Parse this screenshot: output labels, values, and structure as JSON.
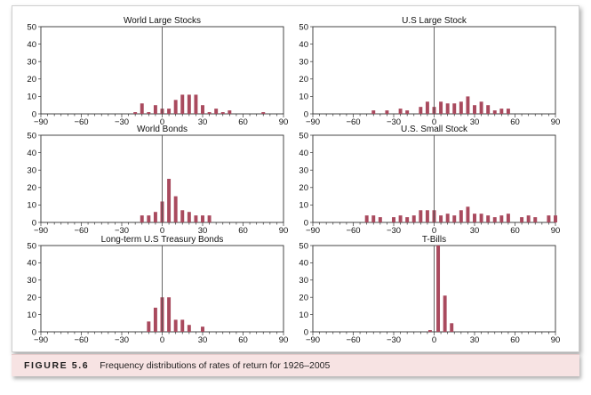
{
  "figure": {
    "label": "FIGURE 5.6",
    "text": "Frequency distributions of rates of return for 1926–2005"
  },
  "colors": {
    "bar": "#a94a5e",
    "axis": "#333333",
    "zero_line": "#555555"
  },
  "chart_data": [
    {
      "type": "bar",
      "title": "World Large Stocks",
      "xlim": [
        -90,
        90
      ],
      "ylim": [
        0,
        50
      ],
      "xticks": [
        -90,
        -60,
        -30,
        0,
        30,
        60,
        90
      ],
      "yticks": [
        0,
        10,
        20,
        30,
        40,
        50
      ],
      "x": [
        -25,
        -20,
        -15,
        -10,
        -5,
        0,
        5,
        10,
        15,
        20,
        25,
        30,
        35,
        40,
        45,
        50,
        55,
        60,
        65,
        70,
        75
      ],
      "values": [
        0,
        1,
        6,
        1,
        5,
        3,
        3,
        8,
        11,
        11,
        11,
        5,
        1,
        3,
        1,
        2,
        0,
        0,
        0,
        0,
        1
      ]
    },
    {
      "type": "bar",
      "title": "U.S Large Stock",
      "xlim": [
        -90,
        90
      ],
      "ylim": [
        0,
        50
      ],
      "xticks": [
        -90,
        -60,
        -30,
        0,
        30,
        60,
        90
      ],
      "yticks": [
        0,
        10,
        20,
        30,
        40,
        50
      ],
      "x": [
        -45,
        -40,
        -35,
        -30,
        -25,
        -20,
        -15,
        -10,
        -5,
        0,
        5,
        10,
        15,
        20,
        25,
        30,
        35,
        40,
        45,
        50,
        55
      ],
      "values": [
        2,
        0,
        2,
        0,
        3,
        2,
        0,
        4,
        7,
        4,
        7,
        6,
        6,
        7,
        10,
        5,
        7,
        5,
        2,
        3,
        3
      ]
    },
    {
      "type": "bar",
      "title": "World Bonds",
      "xlim": [
        -90,
        90
      ],
      "ylim": [
        0,
        50
      ],
      "xticks": [
        -90,
        -60,
        -30,
        0,
        30,
        60,
        90
      ],
      "yticks": [
        0,
        10,
        20,
        30,
        40,
        50
      ],
      "x": [
        -15,
        -10,
        -5,
        0,
        5,
        10,
        15,
        20,
        25,
        30,
        35
      ],
      "values": [
        4,
        4,
        6,
        12,
        25,
        15,
        7,
        6,
        4,
        4,
        4
      ]
    },
    {
      "type": "bar",
      "title": "U.S. Small Stock",
      "xlim": [
        -90,
        90
      ],
      "ylim": [
        0,
        50
      ],
      "xticks": [
        -90,
        -60,
        -30,
        0,
        30,
        60,
        90
      ],
      "yticks": [
        0,
        10,
        20,
        30,
        40,
        50
      ],
      "x": [
        -50,
        -45,
        -40,
        -35,
        -30,
        -25,
        -20,
        -15,
        -10,
        -5,
        0,
        5,
        10,
        15,
        20,
        25,
        30,
        35,
        40,
        45,
        50,
        55,
        60,
        65,
        70,
        75,
        80,
        85,
        90
      ],
      "values": [
        4,
        4,
        3,
        0,
        3,
        4,
        3,
        4,
        7,
        7,
        7,
        4,
        5,
        4,
        7,
        9,
        5,
        5,
        4,
        3,
        4,
        5,
        0,
        3,
        4,
        3,
        0,
        4,
        4
      ]
    },
    {
      "type": "bar",
      "title": "Long-term U.S Treasury Bonds",
      "xlim": [
        -90,
        90
      ],
      "ylim": [
        0,
        50
      ],
      "xticks": [
        -90,
        -60,
        -30,
        0,
        30,
        60,
        90
      ],
      "yticks": [
        0,
        10,
        20,
        30,
        40,
        50
      ],
      "x": [
        -10,
        -5,
        0,
        5,
        10,
        15,
        20,
        25,
        30
      ],
      "values": [
        6,
        14,
        20,
        20,
        7,
        7,
        4,
        0,
        3
      ]
    },
    {
      "type": "bar",
      "title": "T-Bills",
      "xlim": [
        -90,
        90
      ],
      "ylim": [
        0,
        50
      ],
      "xticks": [
        -90,
        -60,
        -30,
        0,
        30,
        60,
        90
      ],
      "yticks": [
        0,
        10,
        20,
        30,
        40,
        50
      ],
      "x": [
        -3,
        3,
        8,
        13
      ],
      "values": [
        1,
        50,
        21,
        5
      ]
    }
  ]
}
